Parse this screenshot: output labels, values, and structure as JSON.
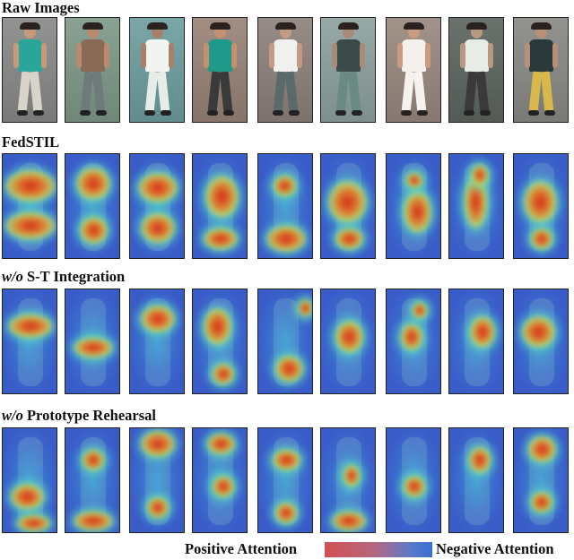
{
  "rows": [
    {
      "label_plain": "Raw Images",
      "label_italic": "",
      "label_rest": ""
    },
    {
      "label_plain": "FedSTIL",
      "label_italic": "",
      "label_rest": ""
    },
    {
      "label_plain": "",
      "label_italic": "w/o",
      "label_rest": " S-T Integration"
    },
    {
      "label_plain": "",
      "label_italic": "w/o",
      "label_rest": " Prototype Rehearsal"
    }
  ],
  "legend": {
    "positive": "Positive Attention",
    "negative": "Negative Attention",
    "gradient_colors": [
      "#d05050",
      "#b86680",
      "#5a7ac8",
      "#3a6fd4"
    ]
  },
  "raw_colors": [
    {
      "bg": "#8a8a88",
      "top": "#2aa59a",
      "bottom": "#d8d4cc",
      "skin": "#c79a7a"
    },
    {
      "bg": "#7f9a8a",
      "top": "#8a6a55",
      "bottom": "#6f7a7a",
      "skin": "#b88a70"
    },
    {
      "bg": "#6f9fa0",
      "top": "#f2f4f2",
      "bottom": "#e8ece8",
      "skin": "#a8806a"
    },
    {
      "bg": "#9a8478",
      "top": "#1f9a8a",
      "bottom": "#3a3a3a",
      "skin": "#c4906e"
    },
    {
      "bg": "#8e827c",
      "top": "#f0f0ee",
      "bottom": "#5a6a6a",
      "skin": "#c49a82"
    },
    {
      "bg": "#8fa3a0",
      "top": "#3a4a48",
      "bottom": "#6a8a86",
      "skin": "#a88a78"
    },
    {
      "bg": "#9a8a80",
      "top": "#f4f0ec",
      "bottom": "#f6f2ee",
      "skin": "#cc9a80"
    },
    {
      "bg": "#5f6660",
      "top": "#e8ece6",
      "bottom": "#3a3a3a",
      "skin": "#b89880"
    },
    {
      "bg": "#8a8a86",
      "top": "#2a3a3a",
      "bottom": "#d8b84a",
      "skin": "#b8907a"
    }
  ],
  "heatmaps": [
    [
      [
        {
          "x": 50,
          "y": 30,
          "w": 90,
          "h": 30
        },
        {
          "x": 50,
          "y": 68,
          "w": 90,
          "h": 25
        }
      ],
      [
        {
          "x": 50,
          "y": 28,
          "w": 60,
          "h": 30
        },
        {
          "x": 50,
          "y": 72,
          "w": 50,
          "h": 25
        }
      ],
      [
        {
          "x": 50,
          "y": 32,
          "w": 70,
          "h": 28
        },
        {
          "x": 50,
          "y": 70,
          "w": 60,
          "h": 28
        }
      ],
      [
        {
          "x": 52,
          "y": 40,
          "w": 60,
          "h": 40
        },
        {
          "x": 50,
          "y": 80,
          "w": 60,
          "h": 20
        }
      ],
      [
        {
          "x": 50,
          "y": 80,
          "w": 70,
          "h": 25
        },
        {
          "x": 48,
          "y": 30,
          "w": 40,
          "h": 20
        }
      ],
      [
        {
          "x": 48,
          "y": 45,
          "w": 70,
          "h": 40
        },
        {
          "x": 50,
          "y": 80,
          "w": 50,
          "h": 20
        }
      ],
      [
        {
          "x": 55,
          "y": 55,
          "w": 50,
          "h": 40
        },
        {
          "x": 50,
          "y": 25,
          "w": 30,
          "h": 15
        }
      ],
      [
        {
          "x": 48,
          "y": 45,
          "w": 40,
          "h": 50
        },
        {
          "x": 55,
          "y": 20,
          "w": 30,
          "h": 20
        }
      ],
      [
        {
          "x": 48,
          "y": 45,
          "w": 60,
          "h": 40
        },
        {
          "x": 50,
          "y": 80,
          "w": 40,
          "h": 20
        }
      ]
    ],
    [
      [
        {
          "x": 50,
          "y": 35,
          "w": 80,
          "h": 22
        }
      ],
      [
        {
          "x": 50,
          "y": 55,
          "w": 70,
          "h": 18
        }
      ],
      [
        {
          "x": 50,
          "y": 28,
          "w": 60,
          "h": 25
        }
      ],
      [
        {
          "x": 45,
          "y": 35,
          "w": 50,
          "h": 35
        },
        {
          "x": 55,
          "y": 80,
          "w": 40,
          "h": 20
        }
      ],
      [
        {
          "x": 55,
          "y": 75,
          "w": 50,
          "h": 25
        },
        {
          "x": 85,
          "y": 18,
          "w": 25,
          "h": 15
        }
      ],
      [
        {
          "x": 50,
          "y": 45,
          "w": 50,
          "h": 30
        }
      ],
      [
        {
          "x": 45,
          "y": 45,
          "w": 40,
          "h": 25
        },
        {
          "x": 60,
          "y": 20,
          "w": 25,
          "h": 15
        }
      ],
      [
        {
          "x": 60,
          "y": 40,
          "w": 45,
          "h": 30
        }
      ],
      [
        {
          "x": 45,
          "y": 40,
          "w": 60,
          "h": 30
        }
      ]
    ],
    [
      [
        {
          "x": 45,
          "y": 65,
          "w": 60,
          "h": 25
        },
        {
          "x": 55,
          "y": 90,
          "w": 60,
          "h": 15
        }
      ],
      [
        {
          "x": 50,
          "y": 88,
          "w": 70,
          "h": 18
        },
        {
          "x": 50,
          "y": 30,
          "w": 40,
          "h": 20
        }
      ],
      [
        {
          "x": 50,
          "y": 15,
          "w": 60,
          "h": 25
        },
        {
          "x": 50,
          "y": 75,
          "w": 40,
          "h": 20
        }
      ],
      [
        {
          "x": 50,
          "y": 15,
          "w": 50,
          "h": 20
        },
        {
          "x": 55,
          "y": 55,
          "w": 40,
          "h": 20
        }
      ],
      [
        {
          "x": 50,
          "y": 30,
          "w": 50,
          "h": 20
        },
        {
          "x": 50,
          "y": 80,
          "w": 40,
          "h": 20
        }
      ],
      [
        {
          "x": 50,
          "y": 88,
          "w": 60,
          "h": 18
        },
        {
          "x": 55,
          "y": 45,
          "w": 30,
          "h": 20
        }
      ],
      [
        {
          "x": 50,
          "y": 55,
          "w": 40,
          "h": 20
        }
      ],
      [
        {
          "x": 55,
          "y": 30,
          "w": 40,
          "h": 25
        }
      ],
      [
        {
          "x": 50,
          "y": 20,
          "w": 50,
          "h": 25
        },
        {
          "x": 50,
          "y": 70,
          "w": 40,
          "h": 20
        }
      ]
    ]
  ]
}
